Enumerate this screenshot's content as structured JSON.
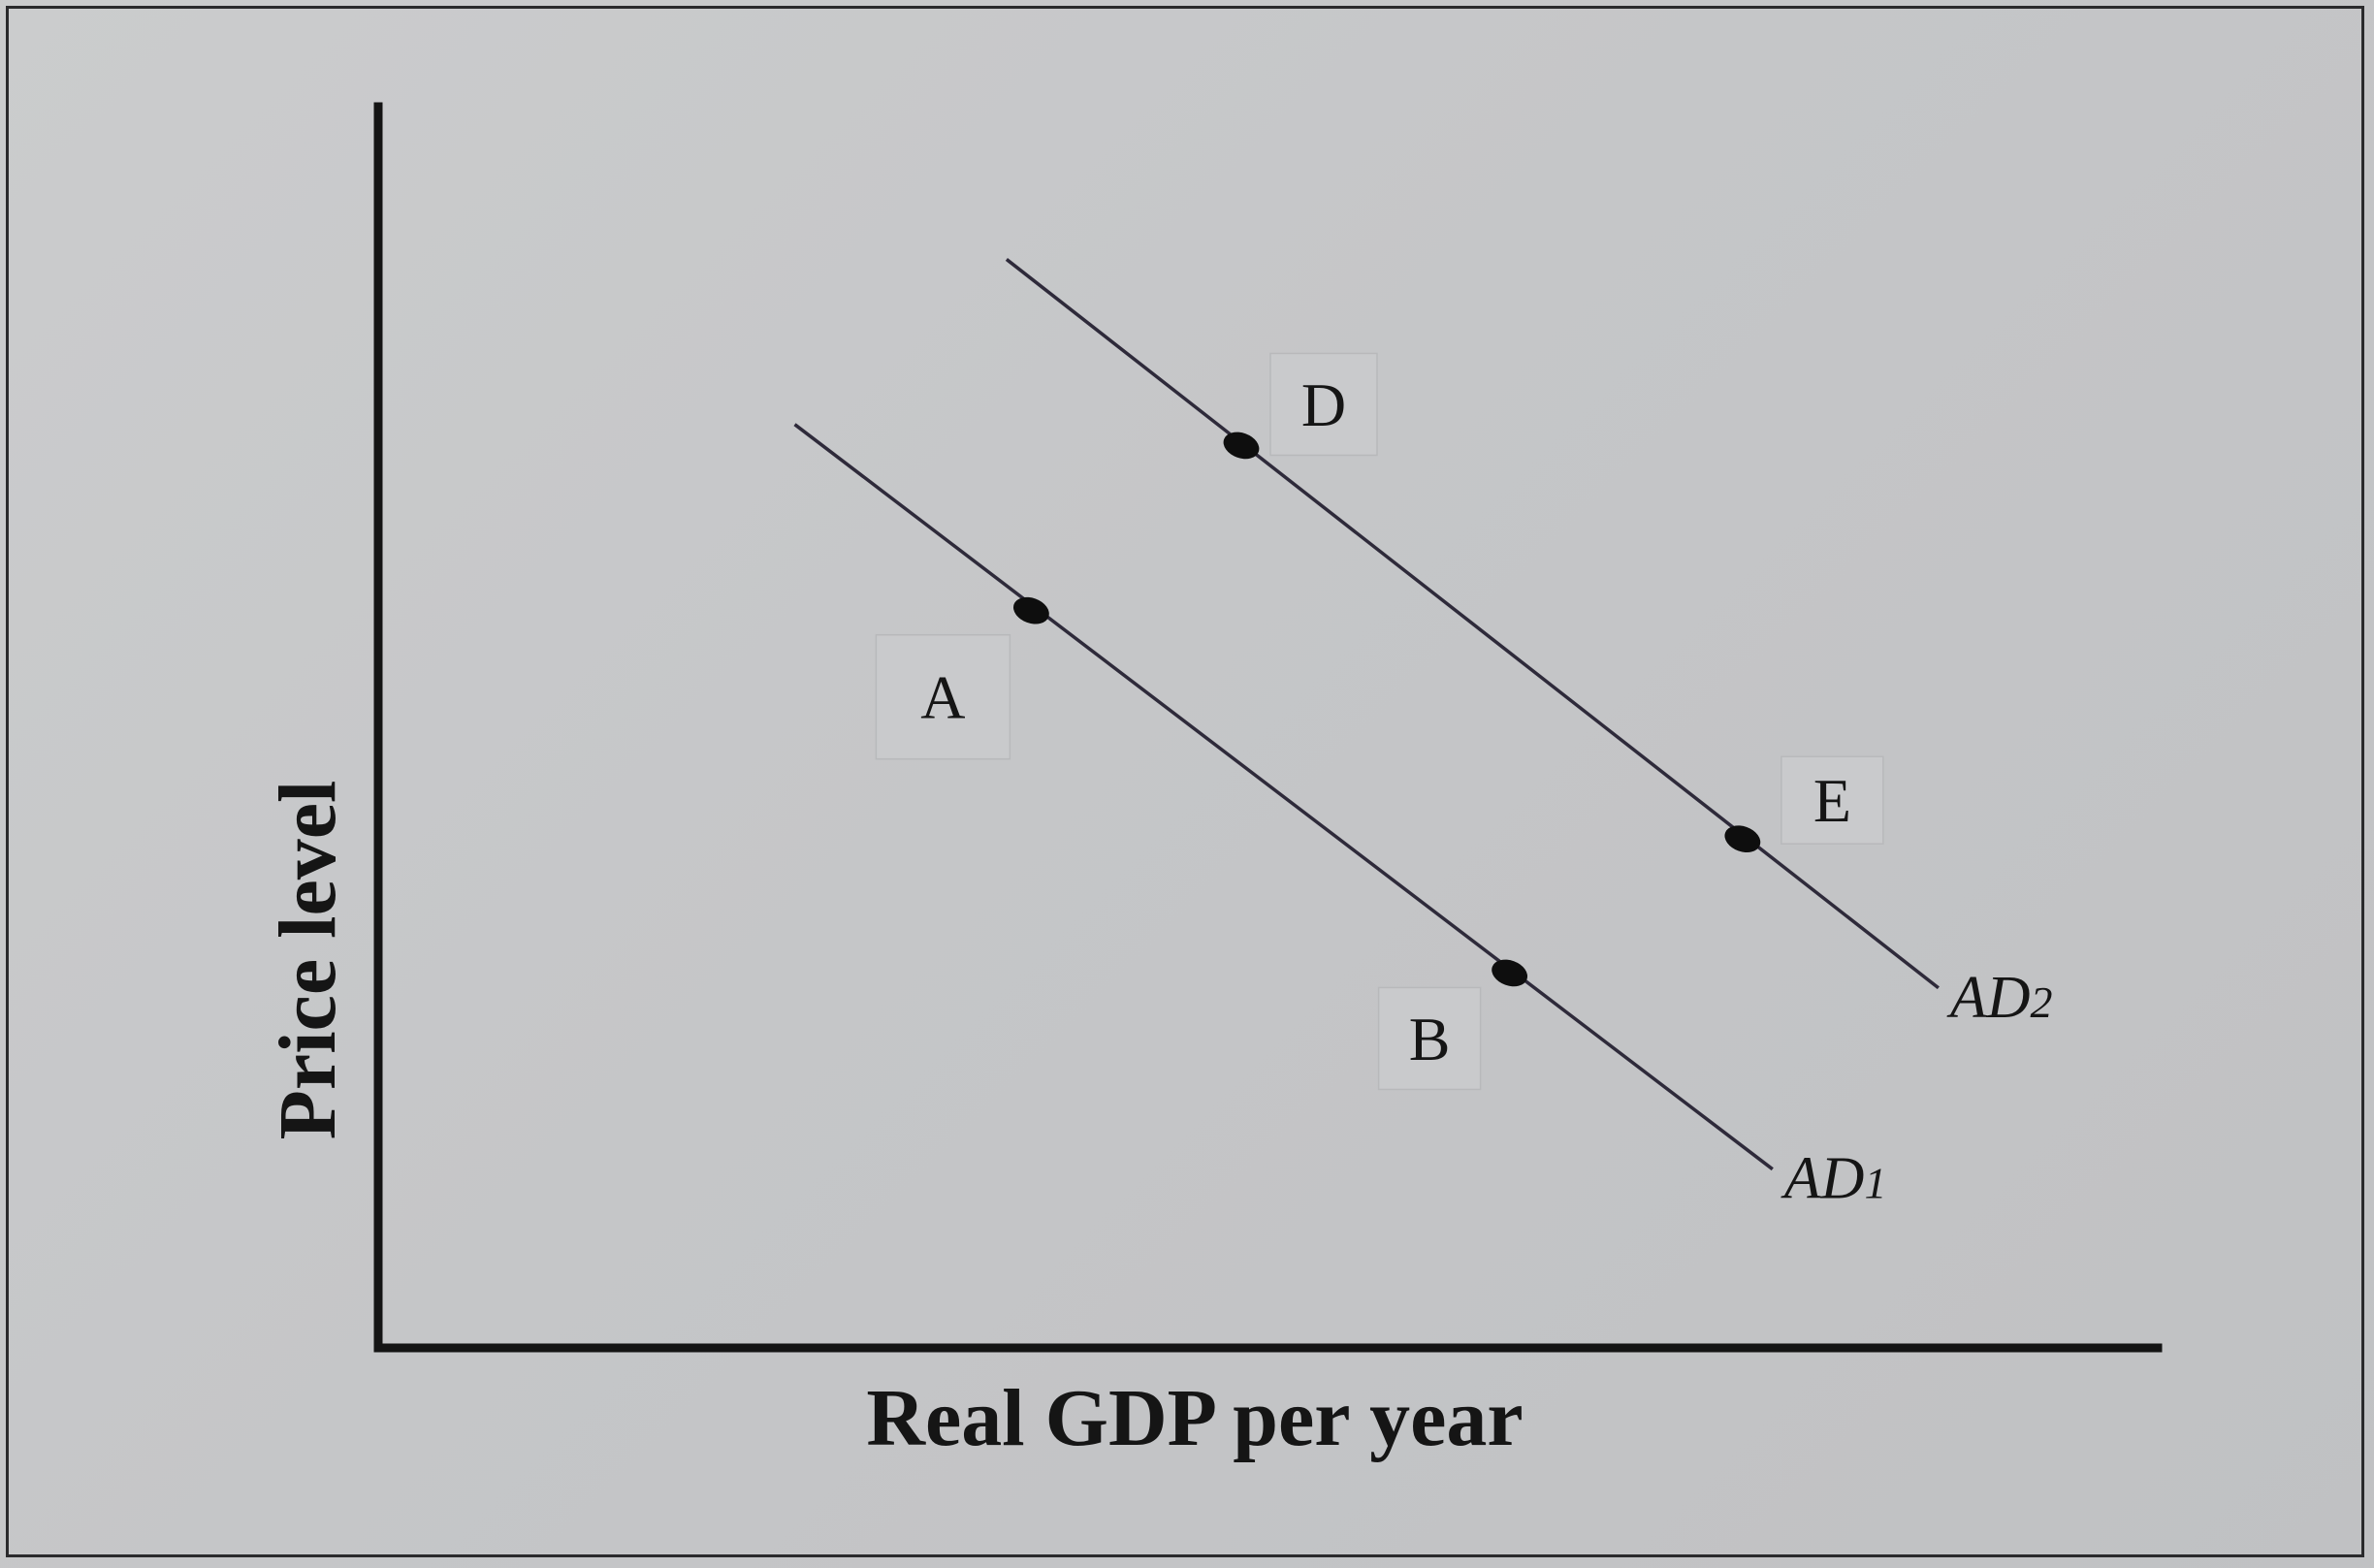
{
  "chart_data": {
    "type": "line",
    "xlabel": "Real GDP per year",
    "ylabel": "Price level",
    "xlim": [
      0,
      100
    ],
    "ylim": [
      0,
      100
    ],
    "grid": false,
    "series": [
      {
        "name": "AD1",
        "label_main": "AD",
        "label_sub": "1",
        "x": [
          23.6,
          79.0
        ],
        "y": [
          74.4,
          14.4
        ],
        "color": "#2e2a3a"
      },
      {
        "name": "AD2",
        "label_main": "AD",
        "label_sub": "2",
        "x": [
          35.6,
          88.4
        ],
        "y": [
          87.7,
          29.0
        ],
        "color": "#2e2a3a"
      }
    ],
    "points": [
      {
        "label": "A",
        "series": "AD1",
        "x": 37.0,
        "y": 59.4
      },
      {
        "label": "B",
        "series": "AD1",
        "x": 64.1,
        "y": 30.2
      },
      {
        "label": "D",
        "series": "AD2",
        "x": 48.9,
        "y": 72.7
      },
      {
        "label": "E",
        "series": "AD2",
        "x": 77.3,
        "y": 41.0
      }
    ]
  },
  "colors": {
    "background": "#c6c7c9",
    "axis": "#141414",
    "curve": "#2e2a3a",
    "point": "#0e0e0e",
    "label_box": "#c9cacc"
  }
}
